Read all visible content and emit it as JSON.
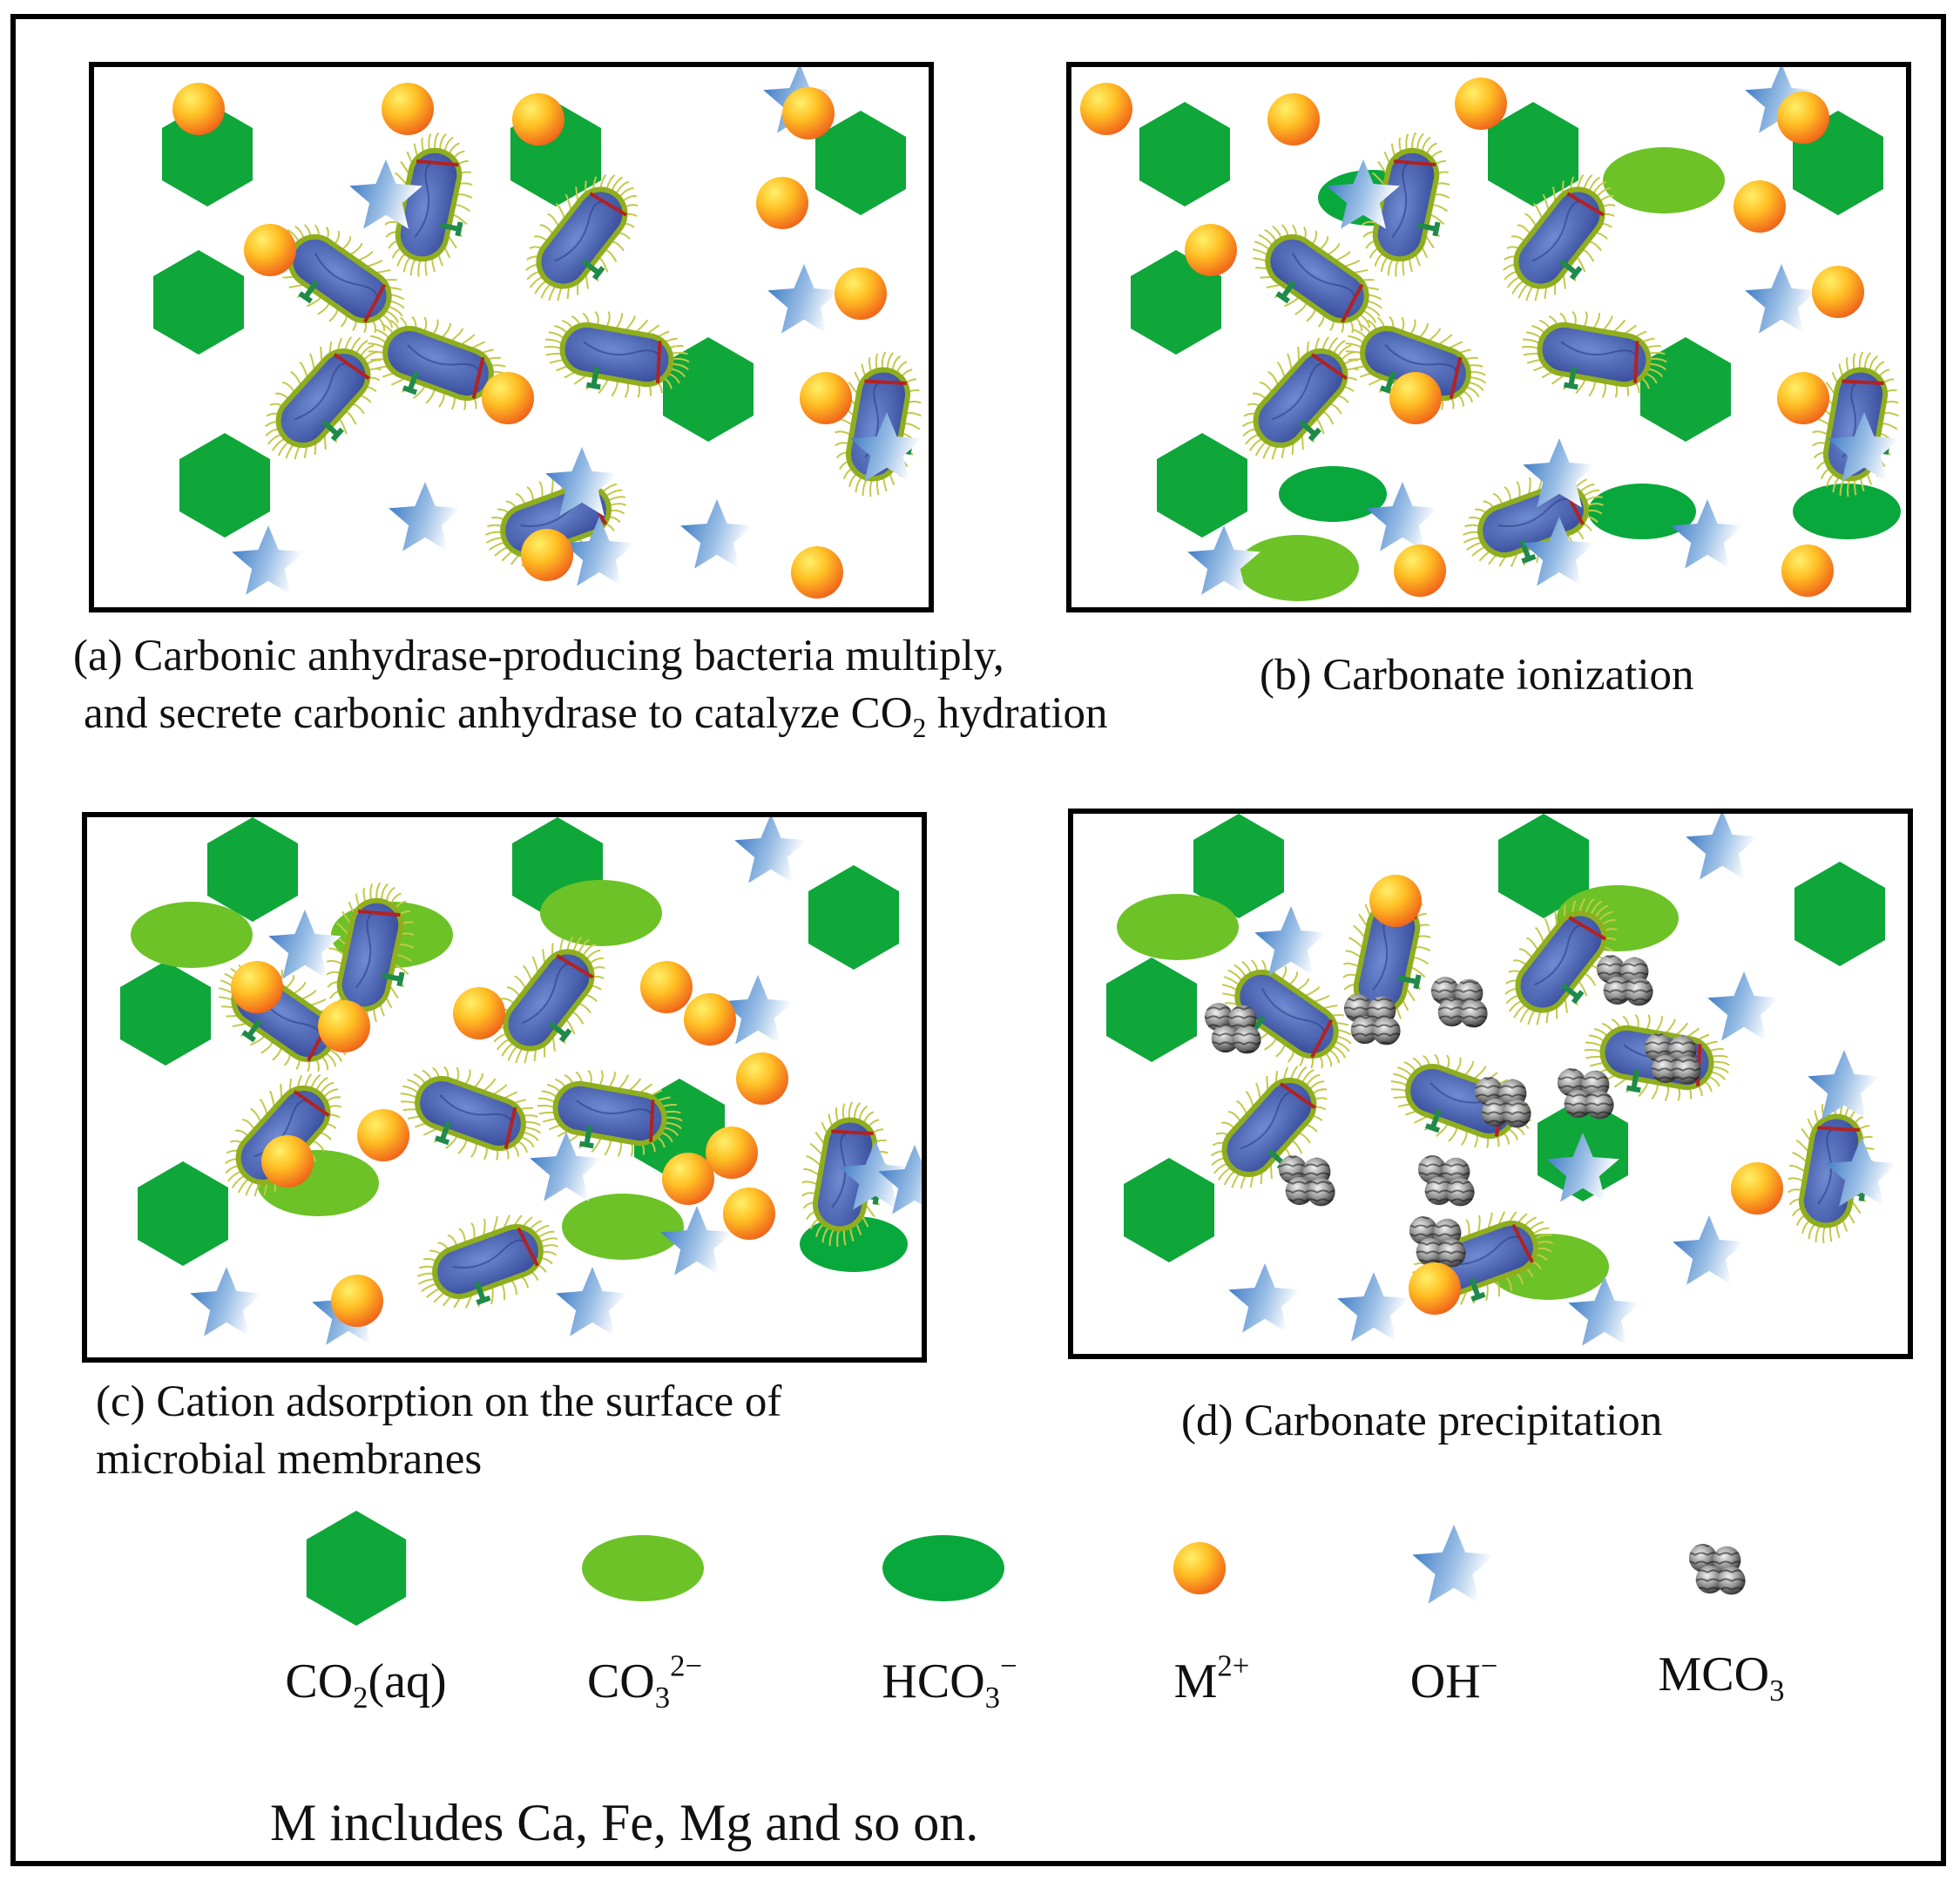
{
  "captions": {
    "a_line1": "(a) Carbonic anhydrase-producing bacteria multiply,",
    "a_line2_pre": "and secrete carbonic anhydrase to catalyze CO",
    "a_line2_sub": "2",
    "a_line2_post": " hydration",
    "b": "(b) Carbonate ionization",
    "c_line1": "(c) Cation adsorption on the surface of",
    "c_line2": "microbial membranes",
    "d": "(d) Carbonate precipitation"
  },
  "legend": {
    "co2_base": "CO",
    "co2_sub": "2",
    "co2_post": "(aq)",
    "co3_base": "CO",
    "co3_sub": "3",
    "co3_sup": "2−",
    "hco3_base": "HCO",
    "hco3_sub": "3",
    "hco3_sup": "−",
    "m_base": "M",
    "m_sup": "2+",
    "oh_base": "OH",
    "oh_sup": "−",
    "mco3_base": "MCO",
    "mco3_sub": "3"
  },
  "footnote": "M includes Ca, Fe, Mg and so on.",
  "colors": {
    "co2_hexagon": "#0fa63a",
    "co3_ellipse": "#6cc226",
    "hco3_ellipse": "#09a83d",
    "cation_orange": "#f07a1f",
    "cation_yellow": "#ffd22e",
    "oh_star_blue": "#4a86c7",
    "bacterium_body": "#4a66b5",
    "bacterium_edge": "#8fae1e",
    "pili": "#c4c84a",
    "mco3_gray": "#555555"
  }
}
